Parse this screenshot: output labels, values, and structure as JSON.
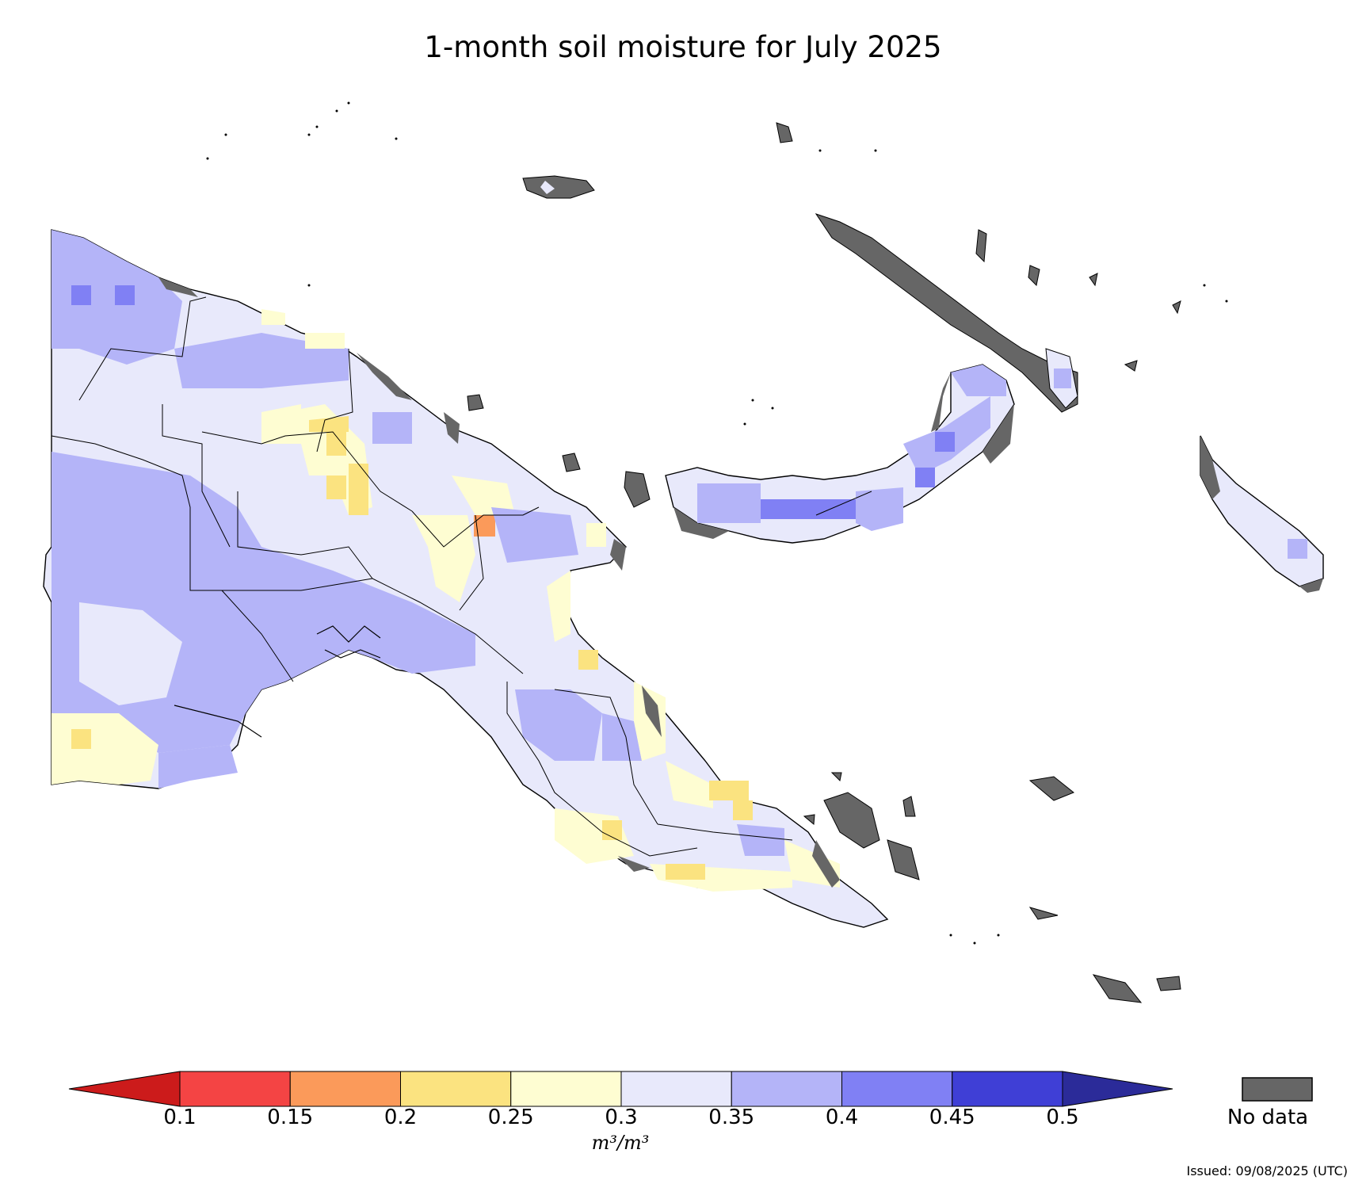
{
  "title": "1-month soil moisture for July 2025",
  "colors": {
    "below_min": "#cc1b1b",
    "bins": [
      "#f44444",
      "#fb9a5a",
      "#fbe380",
      "#fefdd2",
      "#e8e9fb",
      "#b4b4f8",
      "#8080f4",
      "#3f3fd6"
    ],
    "above_max": "#2b2b99",
    "no_data": "#666666",
    "border": "#000000"
  },
  "legend": {
    "bin_edges": [
      0.1,
      0.15,
      0.2,
      0.25,
      0.3,
      0.35,
      0.4,
      0.45,
      0.5
    ],
    "tick_labels": [
      "0.1",
      "0.15",
      "0.2",
      "0.25",
      "0.3",
      "0.35",
      "0.4",
      "0.45",
      "0.5"
    ],
    "unit_label": "m³/m³",
    "no_data_label": "No data",
    "extend": "both"
  },
  "issued": "Issued: 09/08/2025 (UTC)"
}
